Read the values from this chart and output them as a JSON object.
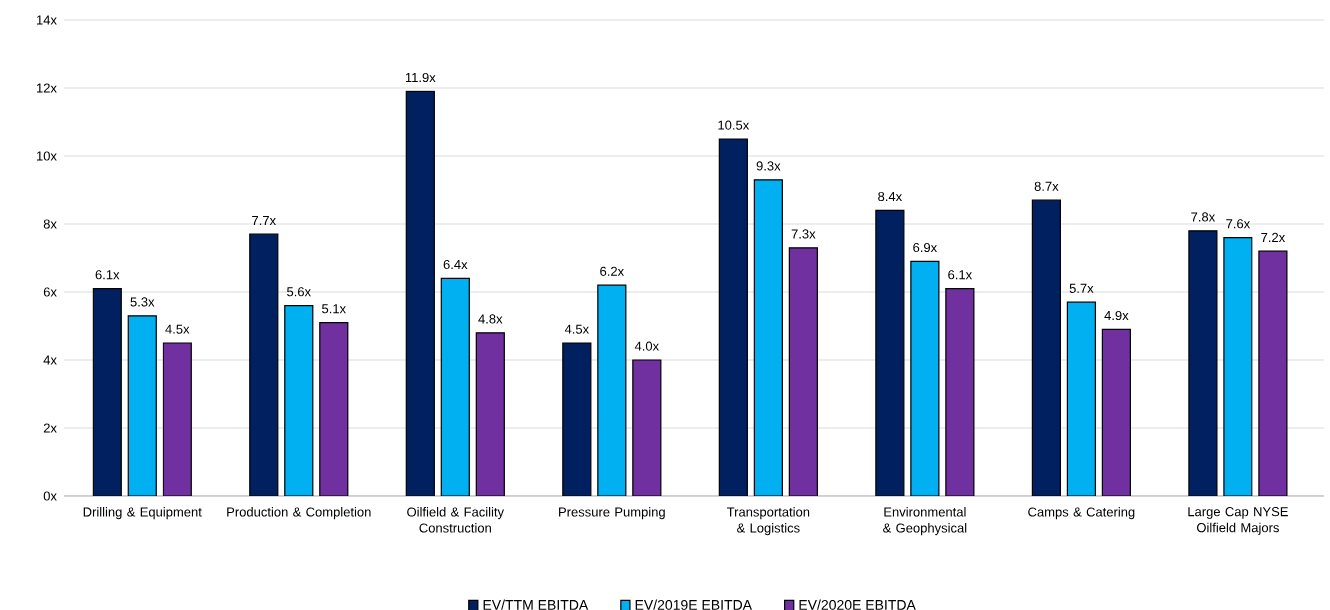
{
  "chart_data": {
    "type": "bar",
    "categories": [
      "Drilling & Equipment",
      "Production & Completion",
      "Oilfield & Facility Construction",
      "Pressure Pumping",
      "Transportation & Logistics",
      "Environmental & Geophysical",
      "Camps & Catering",
      "Large Cap NYSE Oilfield Majors"
    ],
    "series": [
      {
        "name": "EV/TTM EBITDA",
        "color": "#002060",
        "values": [
          6.1,
          7.7,
          11.9,
          4.5,
          10.5,
          8.4,
          8.7,
          7.8
        ],
        "value_labels": [
          "6.1x",
          "7.7x",
          "11.9x",
          "4.5x",
          "10.5x",
          "8.4x",
          "8.7x",
          "7.8x"
        ]
      },
      {
        "name": "EV/2019E EBITDA",
        "color": "#00b0f0",
        "values": [
          5.3,
          5.6,
          6.4,
          6.2,
          9.3,
          6.9,
          5.7,
          7.6
        ],
        "value_labels": [
          "5.3x",
          "5.6x",
          "6.4x",
          "6.2x",
          "9.3x",
          "6.9x",
          "5.7x",
          "7.6x"
        ]
      },
      {
        "name": "EV/2020E EBITDA",
        "color": "#7030a0",
        "values": [
          4.5,
          5.1,
          4.8,
          4.0,
          7.3,
          6.1,
          4.9,
          7.2
        ],
        "value_labels": [
          "4.5x",
          "5.1x",
          "4.8x",
          "4.0x",
          "7.3x",
          "6.1x",
          "4.9x",
          "7.2x"
        ]
      }
    ],
    "ylim": [
      0,
      14
    ],
    "yticks": [
      {
        "value": 0,
        "label": "0x"
      },
      {
        "value": 2,
        "label": "2x"
      },
      {
        "value": 4,
        "label": "4x"
      },
      {
        "value": 6,
        "label": "6x"
      },
      {
        "value": 8,
        "label": "8x"
      },
      {
        "value": 10,
        "label": "10x"
      },
      {
        "value": 12,
        "label": "12x"
      },
      {
        "value": 14,
        "label": "14x"
      }
    ],
    "grid": "y",
    "legend": "bottom"
  }
}
